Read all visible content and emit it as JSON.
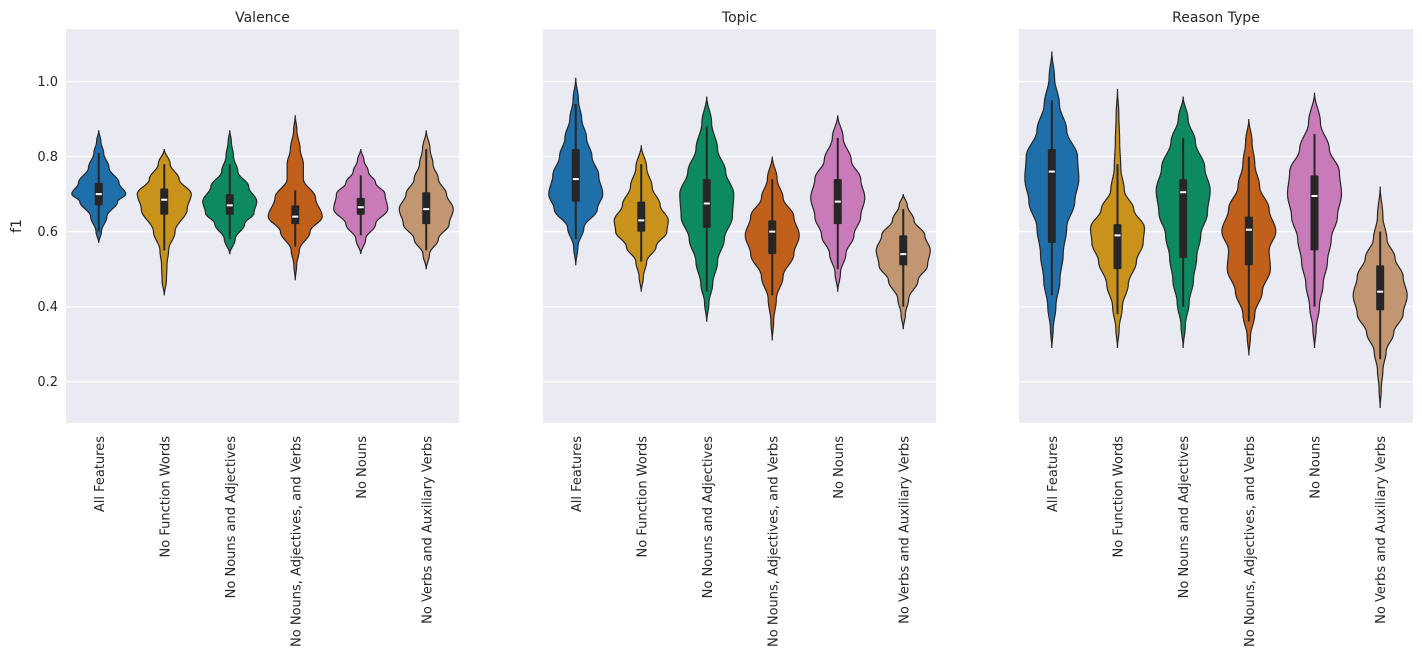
{
  "chart_data": {
    "type": "violin",
    "ylabel": "f1",
    "y_ticks": [
      0.2,
      0.4,
      0.6,
      0.8,
      1.0
    ],
    "ylim": [
      0.09,
      1.14
    ],
    "grid": true,
    "shared_y": true,
    "palette": [
      "#1f6fab",
      "#c9921b",
      "#0e8a62",
      "#c0601b",
      "#c97ab9",
      "#c19670"
    ],
    "background": "#eaeaf2",
    "categories": [
      "All Features",
      "No Function Words",
      "No Nouns and Adjectives",
      "No Nouns, Adjectives, and Verbs",
      "No Nouns",
      "No Verbs and Auxiliary Verbs"
    ],
    "panels": [
      {
        "title": "Valence",
        "violins": [
          {
            "median": 0.7,
            "q1": 0.67,
            "q3": 0.73,
            "wlo": 0.6,
            "whi": 0.81,
            "min": 0.57,
            "max": 0.87,
            "profile": [
              [
                0.57,
                0.0
              ],
              [
                0.6,
                0.1
              ],
              [
                0.64,
                0.3
              ],
              [
                0.68,
                0.7
              ],
              [
                0.7,
                1.0
              ],
              [
                0.73,
                0.75
              ],
              [
                0.77,
                0.38
              ],
              [
                0.81,
                0.18
              ],
              [
                0.84,
                0.08
              ],
              [
                0.87,
                0.0
              ]
            ]
          },
          {
            "median": 0.685,
            "q1": 0.645,
            "q3": 0.715,
            "wlo": 0.55,
            "whi": 0.78,
            "min": 0.43,
            "max": 0.82,
            "profile": [
              [
                0.43,
                0.0
              ],
              [
                0.47,
                0.08
              ],
              [
                0.51,
                0.1
              ],
              [
                0.55,
                0.16
              ],
              [
                0.6,
                0.4
              ],
              [
                0.66,
                0.85
              ],
              [
                0.7,
                1.0
              ],
              [
                0.74,
                0.55
              ],
              [
                0.78,
                0.22
              ],
              [
                0.82,
                0.0
              ]
            ]
          },
          {
            "median": 0.67,
            "q1": 0.645,
            "q3": 0.7,
            "wlo": 0.58,
            "whi": 0.78,
            "min": 0.54,
            "max": 0.87,
            "profile": [
              [
                0.54,
                0.0
              ],
              [
                0.58,
                0.2
              ],
              [
                0.62,
                0.55
              ],
              [
                0.65,
                0.9
              ],
              [
                0.68,
                1.0
              ],
              [
                0.72,
                0.7
              ],
              [
                0.76,
                0.3
              ],
              [
                0.8,
                0.14
              ],
              [
                0.84,
                0.06
              ],
              [
                0.87,
                0.0
              ]
            ]
          },
          {
            "median": 0.64,
            "q1": 0.62,
            "q3": 0.67,
            "wlo": 0.56,
            "whi": 0.71,
            "min": 0.47,
            "max": 0.91,
            "profile": [
              [
                0.47,
                0.0
              ],
              [
                0.51,
                0.05
              ],
              [
                0.55,
                0.15
              ],
              [
                0.6,
                0.55
              ],
              [
                0.64,
                1.0
              ],
              [
                0.69,
                0.75
              ],
              [
                0.74,
                0.3
              ],
              [
                0.78,
                0.3
              ],
              [
                0.82,
                0.18
              ],
              [
                0.87,
                0.06
              ],
              [
                0.91,
                0.0
              ]
            ]
          },
          {
            "median": 0.665,
            "q1": 0.645,
            "q3": 0.69,
            "wlo": 0.59,
            "whi": 0.75,
            "min": 0.54,
            "max": 0.82,
            "profile": [
              [
                0.54,
                0.0
              ],
              [
                0.58,
                0.18
              ],
              [
                0.62,
                0.55
              ],
              [
                0.66,
                1.0
              ],
              [
                0.7,
                0.9
              ],
              [
                0.73,
                0.55
              ],
              [
                0.76,
                0.28
              ],
              [
                0.79,
                0.12
              ],
              [
                0.82,
                0.0
              ]
            ]
          },
          {
            "median": 0.66,
            "q1": 0.62,
            "q3": 0.705,
            "wlo": 0.55,
            "whi": 0.82,
            "min": 0.5,
            "max": 0.87,
            "profile": [
              [
                0.5,
                0.0
              ],
              [
                0.54,
                0.12
              ],
              [
                0.58,
                0.45
              ],
              [
                0.62,
                0.85
              ],
              [
                0.66,
                1.0
              ],
              [
                0.7,
                0.75
              ],
              [
                0.74,
                0.45
              ],
              [
                0.78,
                0.25
              ],
              [
                0.82,
                0.14
              ],
              [
                0.87,
                0.0
              ]
            ]
          }
        ]
      },
      {
        "title": "Topic",
        "violins": [
          {
            "median": 0.74,
            "q1": 0.68,
            "q3": 0.82,
            "wlo": 0.58,
            "whi": 0.94,
            "min": 0.51,
            "max": 1.01,
            "profile": [
              [
                0.51,
                0.0
              ],
              [
                0.56,
                0.08
              ],
              [
                0.61,
                0.3
              ],
              [
                0.66,
                0.8
              ],
              [
                0.7,
                1.0
              ],
              [
                0.75,
                0.85
              ],
              [
                0.8,
                0.6
              ],
              [
                0.85,
                0.4
              ],
              [
                0.9,
                0.22
              ],
              [
                0.95,
                0.1
              ],
              [
                1.01,
                0.0
              ]
            ]
          },
          {
            "median": 0.63,
            "q1": 0.6,
            "q3": 0.68,
            "wlo": 0.52,
            "whi": 0.78,
            "min": 0.44,
            "max": 0.83,
            "profile": [
              [
                0.44,
                0.0
              ],
              [
                0.48,
                0.08
              ],
              [
                0.52,
                0.2
              ],
              [
                0.56,
                0.55
              ],
              [
                0.6,
                0.95
              ],
              [
                0.63,
                1.0
              ],
              [
                0.67,
                0.7
              ],
              [
                0.72,
                0.4
              ],
              [
                0.77,
                0.2
              ],
              [
                0.83,
                0.0
              ]
            ]
          },
          {
            "median": 0.675,
            "q1": 0.61,
            "q3": 0.74,
            "wlo": 0.44,
            "whi": 0.88,
            "min": 0.36,
            "max": 0.96,
            "profile": [
              [
                0.36,
                0.0
              ],
              [
                0.41,
                0.08
              ],
              [
                0.46,
                0.22
              ],
              [
                0.52,
                0.4
              ],
              [
                0.58,
                0.65
              ],
              [
                0.64,
                0.95
              ],
              [
                0.7,
                1.0
              ],
              [
                0.76,
                0.7
              ],
              [
                0.82,
                0.4
              ],
              [
                0.89,
                0.18
              ],
              [
                0.96,
                0.0
              ]
            ]
          },
          {
            "median": 0.6,
            "q1": 0.54,
            "q3": 0.63,
            "wlo": 0.43,
            "whi": 0.74,
            "min": 0.31,
            "max": 0.8,
            "profile": [
              [
                0.31,
                0.0
              ],
              [
                0.36,
                0.05
              ],
              [
                0.42,
                0.15
              ],
              [
                0.48,
                0.4
              ],
              [
                0.54,
                0.8
              ],
              [
                0.59,
                1.0
              ],
              [
                0.64,
                0.8
              ],
              [
                0.69,
                0.4
              ],
              [
                0.74,
                0.18
              ],
              [
                0.8,
                0.0
              ]
            ]
          },
          {
            "median": 0.68,
            "q1": 0.62,
            "q3": 0.74,
            "wlo": 0.5,
            "whi": 0.85,
            "min": 0.44,
            "max": 0.91,
            "profile": [
              [
                0.44,
                0.0
              ],
              [
                0.49,
                0.1
              ],
              [
                0.54,
                0.3
              ],
              [
                0.59,
                0.6
              ],
              [
                0.64,
                0.85
              ],
              [
                0.69,
                1.0
              ],
              [
                0.74,
                0.85
              ],
              [
                0.79,
                0.5
              ],
              [
                0.85,
                0.2
              ],
              [
                0.91,
                0.0
              ]
            ]
          },
          {
            "median": 0.54,
            "q1": 0.51,
            "q3": 0.59,
            "wlo": 0.4,
            "whi": 0.66,
            "min": 0.34,
            "max": 0.7,
            "profile": [
              [
                0.34,
                0.0
              ],
              [
                0.38,
                0.08
              ],
              [
                0.42,
                0.2
              ],
              [
                0.47,
                0.55
              ],
              [
                0.51,
                0.9
              ],
              [
                0.55,
                1.0
              ],
              [
                0.59,
                0.8
              ],
              [
                0.63,
                0.4
              ],
              [
                0.67,
                0.15
              ],
              [
                0.7,
                0.0
              ]
            ]
          }
        ]
      },
      {
        "title": "Reason Type",
        "violins": [
          {
            "median": 0.76,
            "q1": 0.57,
            "q3": 0.82,
            "wlo": 0.43,
            "whi": 0.95,
            "min": 0.29,
            "max": 1.08,
            "profile": [
              [
                0.29,
                0.0
              ],
              [
                0.34,
                0.05
              ],
              [
                0.4,
                0.15
              ],
              [
                0.47,
                0.3
              ],
              [
                0.54,
                0.42
              ],
              [
                0.61,
                0.55
              ],
              [
                0.68,
                0.85
              ],
              [
                0.74,
                1.0
              ],
              [
                0.8,
                0.95
              ],
              [
                0.87,
                0.55
              ],
              [
                0.94,
                0.28
              ],
              [
                1.01,
                0.1
              ],
              [
                1.08,
                0.0
              ]
            ]
          },
          {
            "median": 0.59,
            "q1": 0.5,
            "q3": 0.62,
            "wlo": 0.38,
            "whi": 0.78,
            "min": 0.29,
            "max": 0.98,
            "profile": [
              [
                0.29,
                0.0
              ],
              [
                0.34,
                0.06
              ],
              [
                0.4,
                0.18
              ],
              [
                0.46,
                0.4
              ],
              [
                0.52,
                0.7
              ],
              [
                0.57,
                0.95
              ],
              [
                0.61,
                1.0
              ],
              [
                0.66,
                0.6
              ],
              [
                0.71,
                0.25
              ],
              [
                0.77,
                0.12
              ],
              [
                0.84,
                0.08
              ],
              [
                0.91,
                0.05
              ],
              [
                0.98,
                0.0
              ]
            ]
          },
          {
            "median": 0.705,
            "q1": 0.53,
            "q3": 0.74,
            "wlo": 0.4,
            "whi": 0.85,
            "min": 0.29,
            "max": 0.96,
            "profile": [
              [
                0.29,
                0.0
              ],
              [
                0.35,
                0.08
              ],
              [
                0.41,
                0.22
              ],
              [
                0.47,
                0.38
              ],
              [
                0.53,
                0.5
              ],
              [
                0.59,
                0.65
              ],
              [
                0.65,
                0.9
              ],
              [
                0.71,
                1.0
              ],
              [
                0.77,
                0.8
              ],
              [
                0.84,
                0.45
              ],
              [
                0.9,
                0.18
              ],
              [
                0.96,
                0.0
              ]
            ]
          },
          {
            "median": 0.605,
            "q1": 0.51,
            "q3": 0.64,
            "wlo": 0.36,
            "whi": 0.8,
            "min": 0.27,
            "max": 0.9,
            "profile": [
              [
                0.27,
                0.0
              ],
              [
                0.32,
                0.06
              ],
              [
                0.38,
                0.22
              ],
              [
                0.44,
                0.5
              ],
              [
                0.5,
                0.8
              ],
              [
                0.55,
                0.75
              ],
              [
                0.6,
                1.0
              ],
              [
                0.66,
                0.75
              ],
              [
                0.72,
                0.4
              ],
              [
                0.78,
                0.22
              ],
              [
                0.84,
                0.12
              ],
              [
                0.9,
                0.0
              ]
            ]
          },
          {
            "median": 0.695,
            "q1": 0.55,
            "q3": 0.75,
            "wlo": 0.4,
            "whi": 0.86,
            "min": 0.29,
            "max": 0.97,
            "profile": [
              [
                0.29,
                0.0
              ],
              [
                0.34,
                0.06
              ],
              [
                0.4,
                0.18
              ],
              [
                0.46,
                0.32
              ],
              [
                0.52,
                0.48
              ],
              [
                0.58,
                0.62
              ],
              [
                0.64,
                0.85
              ],
              [
                0.7,
                1.0
              ],
              [
                0.76,
                0.92
              ],
              [
                0.82,
                0.55
              ],
              [
                0.89,
                0.22
              ],
              [
                0.97,
                0.0
              ]
            ]
          },
          {
            "median": 0.44,
            "q1": 0.39,
            "q3": 0.51,
            "wlo": 0.26,
            "whi": 0.6,
            "min": 0.13,
            "max": 0.72,
            "profile": [
              [
                0.13,
                0.0
              ],
              [
                0.18,
                0.04
              ],
              [
                0.23,
                0.1
              ],
              [
                0.28,
                0.22
              ],
              [
                0.33,
                0.5
              ],
              [
                0.38,
                0.85
              ],
              [
                0.43,
                1.0
              ],
              [
                0.48,
                0.85
              ],
              [
                0.53,
                0.55
              ],
              [
                0.58,
                0.25
              ],
              [
                0.64,
                0.1
              ],
              [
                0.72,
                0.0
              ]
            ]
          }
        ]
      }
    ]
  }
}
